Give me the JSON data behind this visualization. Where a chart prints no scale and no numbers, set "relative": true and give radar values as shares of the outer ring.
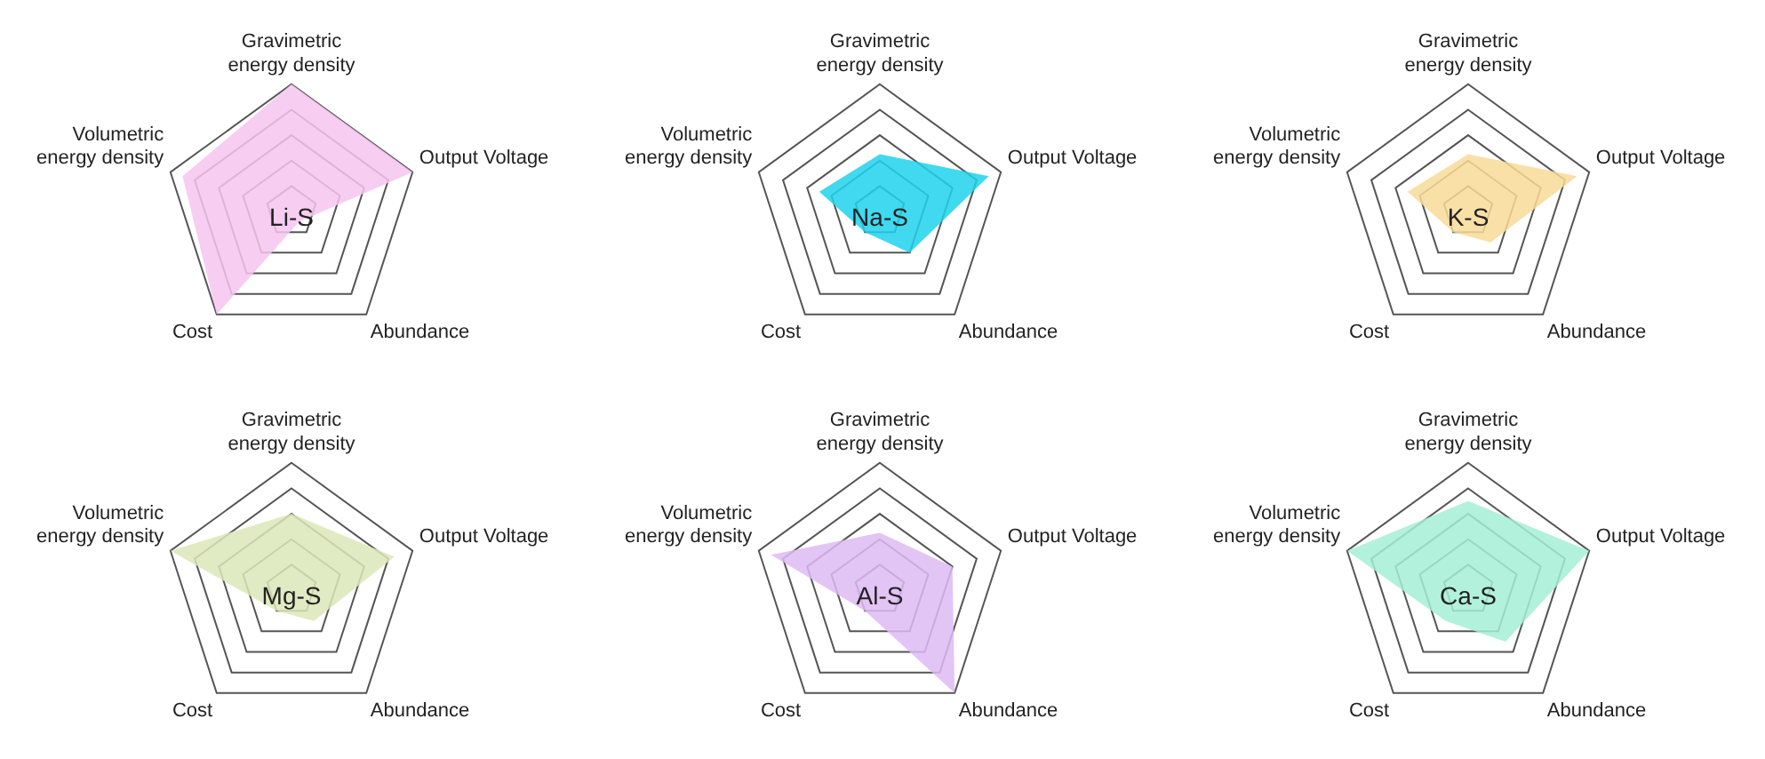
{
  "chart_data": [
    {
      "type": "radar",
      "relative": true,
      "categories": [
        "Gravimetric energy density",
        "Output Voltage",
        "Abundance",
        "Cost",
        "Volumetric energy density"
      ],
      "series": [
        {
          "name": "Li-S",
          "color": "#f7c4f0",
          "values": [
            1,
            1,
            0.1,
            1,
            0.9
          ]
        }
      ]
    },
    {
      "type": "radar",
      "relative": true,
      "categories": [
        "Gravimetric energy density",
        "Output Voltage",
        "Abundance",
        "Cost",
        "Volumetric energy density"
      ],
      "series": [
        {
          "name": "Na-S",
          "color": "#1fd2ec",
          "values": [
            0.45,
            0.9,
            0.4,
            0.2,
            0.5
          ]
        }
      ]
    },
    {
      "type": "radar",
      "relative": true,
      "categories": [
        "Gravimetric energy density",
        "Output Voltage",
        "Abundance",
        "Cost",
        "Volumetric energy density"
      ],
      "series": [
        {
          "name": "K-S",
          "color": "#f8da98",
          "values": [
            0.45,
            0.9,
            0.3,
            0.2,
            0.5
          ]
        }
      ]
    },
    {
      "type": "radar",
      "relative": true,
      "categories": [
        "Gravimetric energy density",
        "Output Voltage",
        "Abundance",
        "Cost",
        "Volumetric energy density"
      ],
      "series": [
        {
          "name": "Mg-S",
          "color": "#dce7b8",
          "values": [
            0.6,
            0.85,
            0.3,
            0.2,
            1
          ]
        }
      ]
    },
    {
      "type": "radar",
      "relative": true,
      "categories": [
        "Gravimetric energy density",
        "Output Voltage",
        "Abundance",
        "Cost",
        "Volumetric energy density"
      ],
      "series": [
        {
          "name": "Al-S",
          "color": "#ddbaf3",
          "values": [
            0.45,
            0.6,
            1,
            0.2,
            0.9
          ]
        }
      ]
    },
    {
      "type": "radar",
      "relative": true,
      "categories": [
        "Gravimetric energy density",
        "Output Voltage",
        "Abundance",
        "Cost",
        "Volumetric energy density"
      ],
      "series": [
        {
          "name": "Ca-S",
          "color": "#a4eed6",
          "values": [
            0.7,
            1,
            0.5,
            0.3,
            1
          ]
        }
      ]
    }
  ]
}
